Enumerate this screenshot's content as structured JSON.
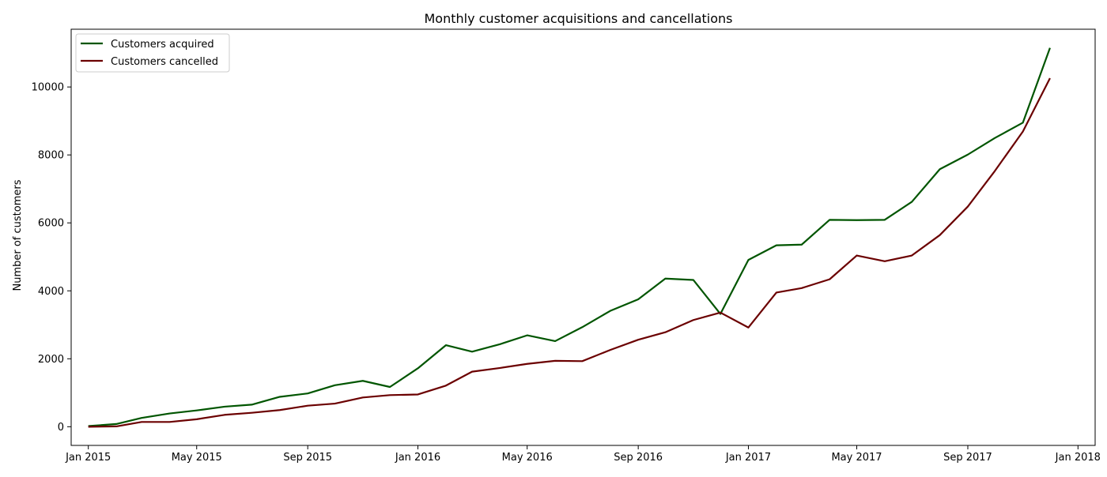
{
  "chart_data": {
    "type": "line",
    "title": "Monthly customer acquisitions and cancellations",
    "xlabel": "",
    "ylabel": "Number of customers",
    "x": [
      "2015-01",
      "2015-02",
      "2015-03",
      "2015-04",
      "2015-05",
      "2015-06",
      "2015-07",
      "2015-08",
      "2015-09",
      "2015-10",
      "2015-11",
      "2015-12",
      "2016-01",
      "2016-02",
      "2016-03",
      "2016-04",
      "2016-05",
      "2016-06",
      "2016-07",
      "2016-08",
      "2016-09",
      "2016-10",
      "2016-11",
      "2016-12",
      "2017-01",
      "2017-02",
      "2017-03",
      "2017-04",
      "2017-05",
      "2017-06",
      "2017-07",
      "2017-08",
      "2017-09",
      "2017-10",
      "2017-11",
      "2017-12"
    ],
    "xlim": [
      "2014-12-13",
      "2018-01-20"
    ],
    "ylim": [
      -550,
      11700
    ],
    "x_ticks": [
      {
        "date": "2015-01-01",
        "label": "Jan 2015"
      },
      {
        "date": "2015-05-01",
        "label": "May 2015"
      },
      {
        "date": "2015-09-01",
        "label": "Sep 2015"
      },
      {
        "date": "2016-01-01",
        "label": "Jan 2016"
      },
      {
        "date": "2016-05-01",
        "label": "May 2016"
      },
      {
        "date": "2016-09-01",
        "label": "Sep 2016"
      },
      {
        "date": "2017-01-01",
        "label": "Jan 2017"
      },
      {
        "date": "2017-05-01",
        "label": "May 2017"
      },
      {
        "date": "2017-09-01",
        "label": "Sep 2017"
      },
      {
        "date": "2018-01-01",
        "label": "Jan 2018"
      }
    ],
    "y_ticks": [
      0,
      2000,
      4000,
      6000,
      8000,
      10000
    ],
    "grid": false,
    "legend": "upper-left",
    "series": [
      {
        "name": "Customers acquired",
        "color": "#005500",
        "values": [
          20,
          80,
          260,
          390,
          480,
          590,
          650,
          880,
          980,
          1220,
          1350,
          1170,
          1720,
          2400,
          2210,
          2430,
          2690,
          2520,
          2930,
          3410,
          3750,
          4360,
          4320,
          3320,
          4910,
          5340,
          5360,
          6090,
          6080,
          6090,
          6620,
          7580,
          8010,
          8500,
          8950,
          11150
        ]
      },
      {
        "name": "Customers cancelled",
        "color": "#6b0000",
        "values": [
          0,
          10,
          140,
          140,
          220,
          350,
          410,
          490,
          620,
          680,
          860,
          930,
          950,
          1210,
          1620,
          1730,
          1850,
          1940,
          1930,
          2260,
          2560,
          2780,
          3140,
          3360,
          2920,
          3950,
          4080,
          4340,
          5040,
          4870,
          5040,
          5640,
          6480,
          7530,
          8690,
          10260
        ]
      }
    ]
  }
}
